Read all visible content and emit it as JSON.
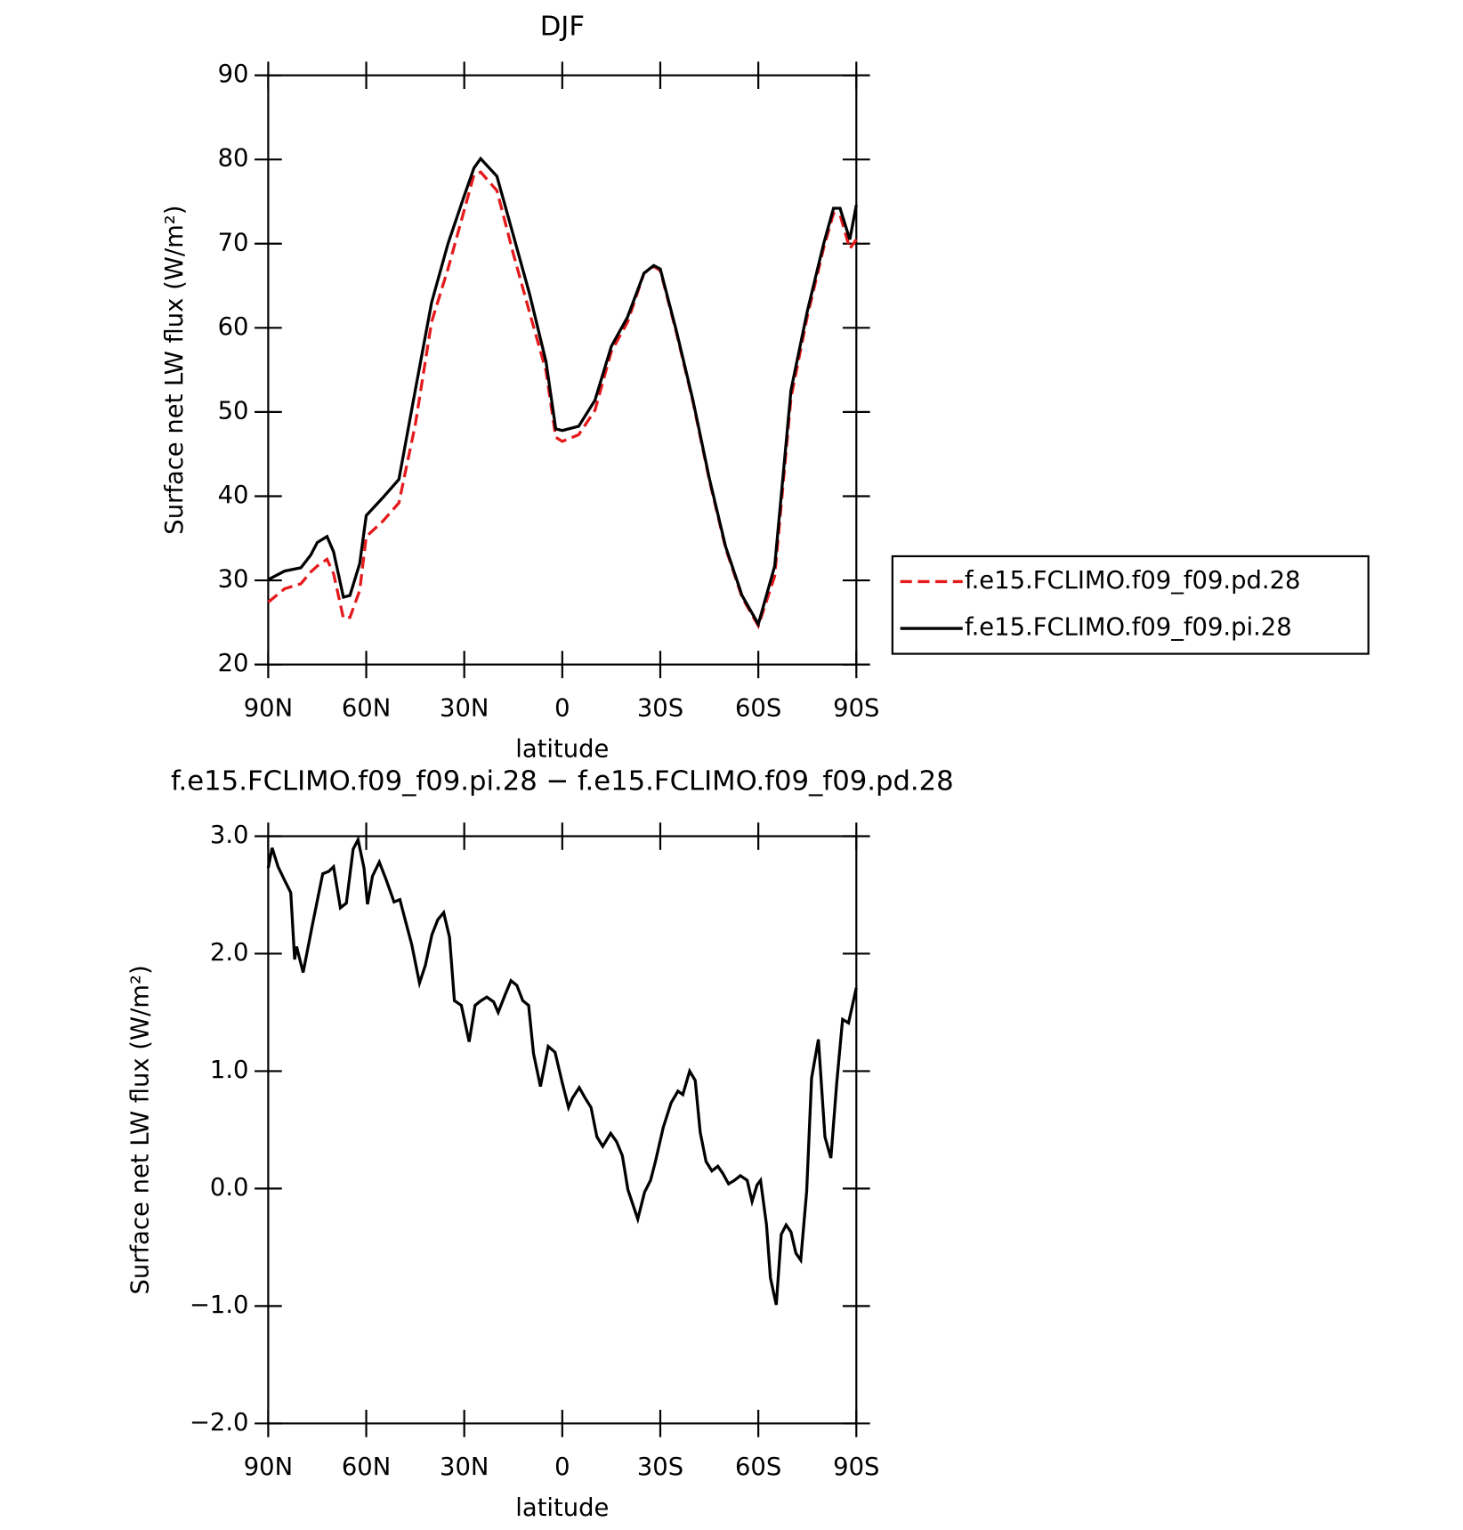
{
  "chart_data": [
    {
      "type": "line",
      "title": "DJF",
      "xlabel": "latitude",
      "ylabel": "Surface net LW flux (W/m²)",
      "xlim": [
        90,
        -90
      ],
      "xticks": [
        {
          "value": 90,
          "label": "90N"
        },
        {
          "value": 60,
          "label": "60N"
        },
        {
          "value": 30,
          "label": "30N"
        },
        0,
        {
          "value": -30,
          "label": "30S"
        },
        {
          "value": -60,
          "label": "60S"
        },
        {
          "value": -90,
          "label": "90S"
        }
      ],
      "ylim": [
        20,
        90
      ],
      "yticks": [
        20,
        30,
        40,
        50,
        60,
        70,
        80,
        90
      ],
      "legend": "right",
      "x": [
        90,
        85,
        80,
        77,
        75,
        72,
        70,
        67,
        65,
        62,
        60,
        55,
        50,
        45,
        40,
        35,
        30,
        27,
        25,
        20,
        15,
        10,
        5,
        2,
        0,
        -5,
        -10,
        -15,
        -20,
        -25,
        -28,
        -30,
        -35,
        -40,
        -45,
        -50,
        -55,
        -60,
        -65,
        -70,
        -75,
        -80,
        -83,
        -85,
        -88,
        -90
      ],
      "series": [
        {
          "name": "f.e15.FCLIMO.f09_f09.pd.28",
          "color": "#e41a1c",
          "line_style": "dashed",
          "values": [
            27.4,
            29,
            29.6,
            31,
            31.7,
            32.5,
            30.8,
            25.5,
            25.6,
            28.8,
            35.2,
            37,
            39.2,
            48.5,
            60.7,
            67,
            74,
            78.2,
            78.5,
            76.3,
            68.8,
            61.8,
            54.9,
            47,
            46.5,
            47.3,
            50.2,
            57.2,
            60.7,
            66.5,
            67.3,
            66.8,
            59.3,
            51.2,
            41.9,
            33.8,
            28,
            24.6,
            30.5,
            51.7,
            61.4,
            69.5,
            73.6,
            73.4,
            69.4,
            70.5
          ]
        },
        {
          "name": "f.e15.FCLIMO.f09_f09.pi.28",
          "color": "#000000",
          "line_style": "solid",
          "values": [
            30.1,
            31.1,
            31.5,
            33,
            34.5,
            35.2,
            33.4,
            28,
            28.2,
            32,
            37.7,
            39.8,
            42,
            52.6,
            63,
            70,
            75.7,
            79,
            80.1,
            78,
            71,
            64,
            56,
            48,
            47.8,
            48.3,
            51.4,
            57.8,
            61.3,
            66.5,
            67.4,
            67,
            59.5,
            51.4,
            42.1,
            34,
            28.2,
            24.8,
            31.7,
            52.6,
            62,
            70,
            74.2,
            74.2,
            70.5,
            74.6
          ]
        }
      ]
    },
    {
      "type": "line",
      "title": "f.e15.FCLIMO.f09_f09.pi.28 − f.e15.FCLIMO.f09_f09.pd.28",
      "xlabel": "latitude",
      "ylabel": "Surface net LW flux (W/m²)",
      "xlim": [
        90,
        -90
      ],
      "xticks": [
        {
          "value": 90,
          "label": "90N"
        },
        {
          "value": 60,
          "label": "60N"
        },
        {
          "value": 30,
          "label": "30N"
        },
        0,
        {
          "value": -30,
          "label": "30S"
        },
        {
          "value": -60,
          "label": "60S"
        },
        {
          "value": -90,
          "label": "90S"
        }
      ],
      "ylim": [
        -2,
        3
      ],
      "yticks": [
        {
          "value": -2,
          "label": "−2.0"
        },
        {
          "value": -1,
          "label": "−1.0"
        },
        {
          "value": 0,
          "label": "0.0"
        },
        {
          "value": 1,
          "label": "1.0"
        },
        {
          "value": 2,
          "label": "2.0"
        },
        {
          "value": 3,
          "label": "3.0"
        }
      ],
      "x": [
        90,
        88.8,
        87,
        84.9,
        83.1,
        81.9,
        81.3,
        79.3,
        76.3,
        73.3,
        71.5,
        70,
        67.9,
        66.1,
        64,
        62.5,
        60.7,
        59.6,
        58.1,
        56,
        53.9,
        51.5,
        49.7,
        47.9,
        46.1,
        43.7,
        41.9,
        39.9,
        38.1,
        36.3,
        34.5,
        33,
        30.9,
        28.5,
        26.7,
        24.9,
        23.1,
        21,
        19.6,
        17.5,
        15.7,
        13.9,
        12.1,
        10.3,
        8.8,
        6.7,
        4.3,
        2.2,
        0,
        -1.9,
        -3.1,
        -5.2,
        -7,
        -8.8,
        -10.6,
        -12.4,
        -14.8,
        -16.6,
        -18.4,
        -20.1,
        -23.1,
        -25.2,
        -27,
        -28.5,
        -30.9,
        -33.3,
        -35.4,
        -36.9,
        -39,
        -40.7,
        -42.2,
        -44,
        -45.8,
        -47.6,
        -49.1,
        -50.9,
        -52.7,
        -54.5,
        -56.6,
        -58.1,
        -59.6,
        -60.7,
        -62.5,
        -63.7,
        -65.5,
        -67,
        -68.5,
        -70,
        -71.5,
        -73,
        -74.8,
        -76.3,
        -78.4,
        -80.4,
        -82.2,
        -84,
        -85.8,
        -87.6,
        -90
      ],
      "series": [
        {
          "color": "#000000",
          "line_style": "solid",
          "values": [
            2.73,
            2.9,
            2.74,
            2.62,
            2.52,
            1.95,
            2.06,
            1.84,
            2.27,
            2.68,
            2.7,
            2.74,
            2.39,
            2.43,
            2.89,
            2.97,
            2.73,
            2.42,
            2.66,
            2.78,
            2.63,
            2.44,
            2.46,
            2.27,
            2.08,
            1.75,
            1.9,
            2.16,
            2.29,
            2.35,
            2.14,
            1.6,
            1.56,
            1.25,
            1.56,
            1.6,
            1.63,
            1.59,
            1.5,
            1.65,
            1.77,
            1.73,
            1.6,
            1.56,
            1.15,
            0.87,
            1.21,
            1.16,
            0.9,
            0.69,
            0.77,
            0.86,
            0.77,
            0.69,
            0.44,
            0.36,
            0.47,
            0.4,
            0.28,
            -0.01,
            -0.26,
            -0.03,
            0.07,
            0.23,
            0.52,
            0.73,
            0.83,
            0.8,
            1.0,
            0.92,
            0.48,
            0.23,
            0.15,
            0.19,
            0.13,
            0.04,
            0.07,
            0.11,
            0.07,
            -0.11,
            0.03,
            0.07,
            -0.31,
            -0.76,
            -0.99,
            -0.39,
            -0.31,
            -0.37,
            -0.55,
            -0.61,
            -0.02,
            0.94,
            1.27,
            0.44,
            0.26,
            0.9,
            1.44,
            1.41,
            1.71
          ]
        }
      ]
    }
  ]
}
